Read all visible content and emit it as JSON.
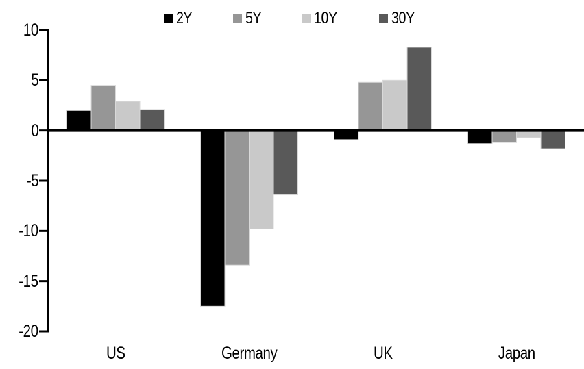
{
  "chart_data": {
    "type": "bar",
    "title": "",
    "xlabel": "",
    "ylabel": "",
    "categories": [
      "US",
      "Germany",
      "UK",
      "Japan"
    ],
    "series": [
      {
        "name": "2Y",
        "color": "#000000",
        "values": [
          2.0,
          -17.5,
          -0.9,
          -1.3
        ]
      },
      {
        "name": "5Y",
        "color": "#969696",
        "values": [
          4.5,
          -13.4,
          4.8,
          -1.2
        ]
      },
      {
        "name": "10Y",
        "color": "#c9c9c9",
        "values": [
          2.9,
          -9.8,
          5.0,
          -0.7
        ]
      },
      {
        "name": "30Y",
        "color": "#595959",
        "values": [
          2.1,
          -6.4,
          8.3,
          -1.8
        ]
      }
    ],
    "ylim": [
      -20,
      10
    ],
    "y_ticks": [
      "10",
      "5",
      "0",
      "-5",
      "-10",
      "-15",
      "-20"
    ],
    "grid": "off",
    "legend_position": "top-center",
    "axis_color": "#000000",
    "bar_outline_color": "#d9d9d9",
    "background": "#ffffff"
  }
}
